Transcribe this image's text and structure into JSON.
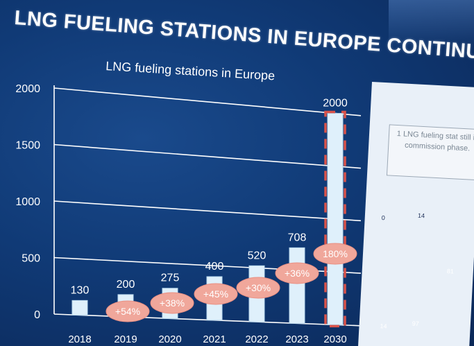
{
  "headline": "LNG FUELING STATIONS IN EUROPE CONTINUES T",
  "chart_data": {
    "type": "bar",
    "title": "LNG fueling stations in Europe",
    "categories": [
      "2018",
      "2019",
      "2020",
      "2021",
      "2022",
      "2023",
      "2030"
    ],
    "values": [
      130,
      200,
      275,
      400,
      520,
      708,
      2000
    ],
    "value_labels": [
      "130",
      "200",
      "275",
      "400",
      "520",
      "708",
      "2000"
    ],
    "growth_labels": [
      "+54%",
      "+38%",
      "+45%",
      "+30%",
      "+36%",
      "180%"
    ],
    "ylim": [
      0,
      2000
    ],
    "yticks": [
      0,
      500,
      1000,
      1500,
      2000
    ],
    "xlabel": "",
    "ylabel": "",
    "grid": true,
    "colors": {
      "bar": "#dff0fb",
      "bar_edge": "#b9d8ee",
      "highlight_dash": "#d9534a",
      "growth_bubble": "#f0a79b",
      "growth_text": "#ffffff",
      "grid": "#ffffff",
      "text": "#ffffff"
    }
  },
  "map_panel": {
    "note": "1 LNG fueling stat still in commission phase.",
    "labels": [
      "0",
      "14",
      "81",
      "14",
      "97"
    ]
  }
}
